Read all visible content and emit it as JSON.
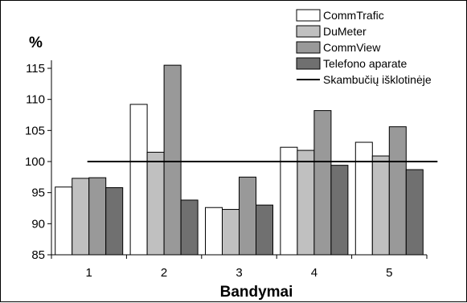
{
  "chart_data": {
    "type": "bar",
    "title": "",
    "ylabel": "%",
    "xlabel": "Bandymai",
    "categories": [
      "1",
      "2",
      "3",
      "4",
      "5"
    ],
    "ylim": [
      85,
      115
    ],
    "yticks": [
      85,
      90,
      95,
      100,
      105,
      110,
      115
    ],
    "grid": false,
    "legend_position": "top-right",
    "series": [
      {
        "name": "CommTrafic",
        "color": "#ffffff",
        "values": [
          95.9,
          109.2,
          92.6,
          102.3,
          103.1
        ]
      },
      {
        "name": "DuMeter",
        "color": "#c0c0c0",
        "values": [
          97.3,
          101.5,
          92.3,
          101.8,
          100.9
        ]
      },
      {
        "name": "CommView",
        "color": "#999999",
        "values": [
          97.4,
          115.5,
          97.5,
          108.2,
          105.6
        ]
      },
      {
        "name": "Telefono aparate",
        "color": "#707070",
        "values": [
          95.8,
          93.8,
          93.0,
          99.4,
          98.7
        ]
      }
    ],
    "reference_line": {
      "name": "Skambučių išklotinėje",
      "value": 100,
      "color": "#000000"
    }
  }
}
